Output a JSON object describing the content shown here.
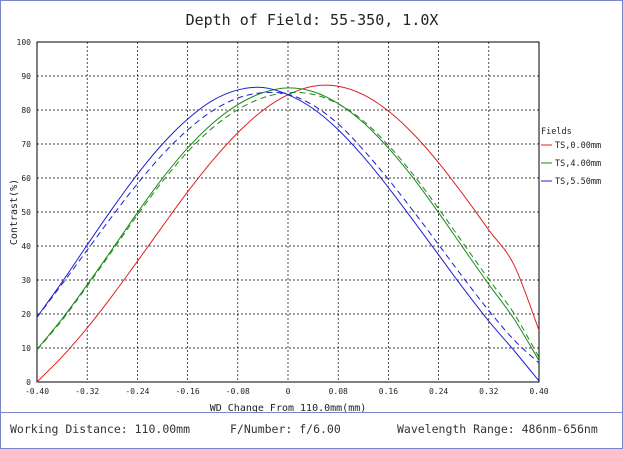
{
  "chart_data": {
    "type": "line",
    "title": "Depth of Field: 55-350, 1.0X",
    "xlabel": "WD Change From 110.0mm(mm)",
    "ylabel": "Contrast(%)",
    "xlim": [
      -0.4,
      0.4
    ],
    "ylim": [
      0,
      100
    ],
    "xticks": [
      "-0.40",
      "-0.32",
      "-0.24",
      "-0.16",
      "-0.08",
      "0",
      "0.08",
      "0.16",
      "0.24",
      "0.32",
      "0.40"
    ],
    "yticks": [
      "0",
      "10",
      "20",
      "30",
      "40",
      "50",
      "60",
      "70",
      "80",
      "90",
      "100"
    ],
    "grid": true,
    "legend_title": "Fields",
    "legend_position": "right",
    "x": [
      -0.4,
      -0.36,
      -0.32,
      -0.28,
      -0.24,
      -0.2,
      -0.16,
      -0.12,
      -0.08,
      -0.04,
      0,
      0.04,
      0.08,
      0.12,
      0.16,
      0.2,
      0.24,
      0.28,
      0.32,
      0.36,
      0.4
    ],
    "series": [
      {
        "name": "TS,0.00mm",
        "color": "#e02020",
        "dash": "solid",
        "values": [
          0,
          7.4,
          15.9,
          25.4,
          35.5,
          45.8,
          55.9,
          65.2,
          73.3,
          79.9,
          84.5,
          87.0,
          87.0,
          84.5,
          79.7,
          72.9,
          64.5,
          54.9,
          44.7,
          34.5,
          15.2
        ]
      },
      {
        "name": "TS,4.00mm",
        "color": "#1a8a1a",
        "dash": "solid",
        "values": [
          9.6,
          18.6,
          28.6,
          39.1,
          49.8,
          59.9,
          68.8,
          76.1,
          81.6,
          85.1,
          86.5,
          85.4,
          81.9,
          76.3,
          68.8,
          59.9,
          49.8,
          39.2,
          28.7,
          18.6,
          6.3
        ]
      },
      {
        "name": "TS,4.00mm",
        "color": "#1a8a1a",
        "dash": "dashed",
        "values": [
          9.4,
          18.2,
          28.2,
          38.6,
          49.1,
          59.0,
          67.7,
          74.8,
          80.1,
          83.6,
          85.1,
          84.6,
          81.8,
          76.8,
          69.6,
          60.9,
          51.0,
          40.6,
          30.2,
          20.2,
          7.2
        ]
      },
      {
        "name": "TS,5.50mm",
        "color": "#2020d0",
        "dash": "solid",
        "values": [
          19.1,
          29.4,
          40.3,
          51.0,
          61.1,
          70.0,
          77.3,
          82.8,
          85.9,
          86.6,
          84.5,
          80.4,
          74.2,
          66.3,
          57.2,
          47.4,
          37.4,
          27.4,
          17.9,
          9.3,
          0.3
        ]
      },
      {
        "name": "TS,5.50mm",
        "color": "#2020d0",
        "dash": "dashed",
        "values": [
          19.0,
          28.8,
          38.8,
          48.8,
          58.3,
          66.9,
          74.1,
          79.8,
          83.5,
          85.1,
          84.6,
          81.4,
          75.9,
          68.3,
          59.6,
          50.2,
          40.4,
          30.5,
          21.0,
          12.4,
          5.6
        ]
      }
    ]
  },
  "legend": [
    {
      "label": "TS,0.00mm",
      "color": "#e02020"
    },
    {
      "label": "TS,4.00mm",
      "color": "#1a8a1a"
    },
    {
      "label": "TS,5.50mm",
      "color": "#2020d0"
    }
  ],
  "footer": {
    "working_distance": "Working Distance: 110.00mm",
    "f_number": "F/Number: f/6.00",
    "wavelength": "Wavelength Range: 486nm-656nm"
  }
}
